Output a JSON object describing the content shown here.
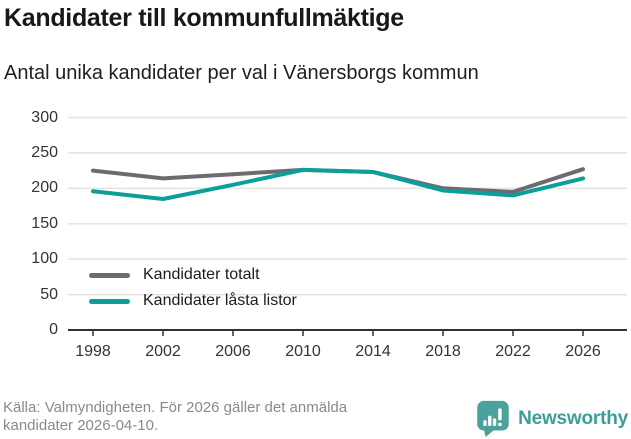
{
  "title": "Kandidater till kommunfullmäktige",
  "subtitle": "Antal unika kandidater per val i Vänersborgs kommun",
  "chart_data": {
    "type": "line",
    "x": [
      1998,
      2002,
      2006,
      2010,
      2014,
      2018,
      2022,
      2026
    ],
    "series": [
      {
        "name": "Kandidater totalt",
        "color": "#6f6a72",
        "values": [
          225,
          214,
          220,
          226,
          223,
          200,
          195,
          227
        ]
      },
      {
        "name": "Kandidater låsta listor",
        "color": "#0aa099",
        "values": [
          196,
          185,
          205,
          226,
          223,
          197,
          190,
          214
        ]
      }
    ],
    "ylim": [
      0,
      300
    ],
    "yticks": [
      0,
      50,
      100,
      150,
      200,
      250,
      300
    ],
    "grid": true,
    "legend_position": "inside-bottom-left",
    "title": "Kandidater till kommunfullmäktige",
    "xlabel": "",
    "ylabel": ""
  },
  "legend": {
    "items": [
      "Kandidater totalt",
      "Kandidater låsta listor"
    ]
  },
  "footer": {
    "source_line1": "Källa: Valmyndigheten. För 2026 gäller det anmälda",
    "source_line2": "kandidater 2026-04-10.",
    "brand_name": "Newsworthy",
    "brand_icon": "newsworthy-speech-bubble-barchart-icon"
  },
  "colors": {
    "series_total": "#6f6a72",
    "series_locked": "#0aa099",
    "brand_teal": "#3d9e99",
    "grid_line": "#e3e3e3",
    "axis_line": "#333333",
    "footer_text": "#8a8a8a"
  }
}
